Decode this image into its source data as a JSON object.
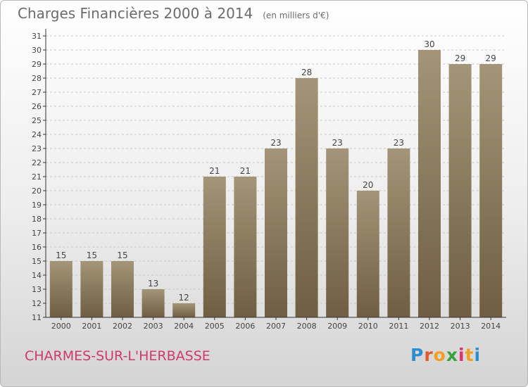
{
  "title": "Charges Financières 2000 à 2014",
  "title_unit": "(en milliers d'€)",
  "place_name": "CHARMES-SUR-L'HERBASSE",
  "logo": {
    "letters": [
      "P",
      "r",
      "o",
      "x",
      "i",
      "t",
      "i"
    ],
    "colors": [
      "#2a8fd0",
      "#e05a2a",
      "#f0a020",
      "#3aa040",
      "#e03070",
      "#f0a020",
      "#2a8fd0"
    ]
  },
  "colors": {
    "bar_light": "#a39577",
    "bar_dark": "#6f5e42",
    "axis": "#333333",
    "grid": "#c8c8c8",
    "text": "#444444"
  },
  "chart_data": {
    "type": "bar",
    "categories": [
      "2000",
      "2001",
      "2002",
      "2003",
      "2004",
      "2005",
      "2006",
      "2007",
      "2008",
      "2009",
      "2010",
      "2011",
      "2012",
      "2013",
      "2014"
    ],
    "values": [
      15,
      15,
      15,
      13,
      12,
      21,
      21,
      23,
      28,
      23,
      20,
      23,
      30,
      29,
      29
    ],
    "ylim": [
      11,
      31
    ],
    "yticks": [
      11,
      12,
      13,
      14,
      15,
      16,
      17,
      18,
      19,
      20,
      21,
      22,
      23,
      24,
      25,
      26,
      27,
      28,
      29,
      30,
      31
    ],
    "grid": true,
    "data_labels": true
  }
}
